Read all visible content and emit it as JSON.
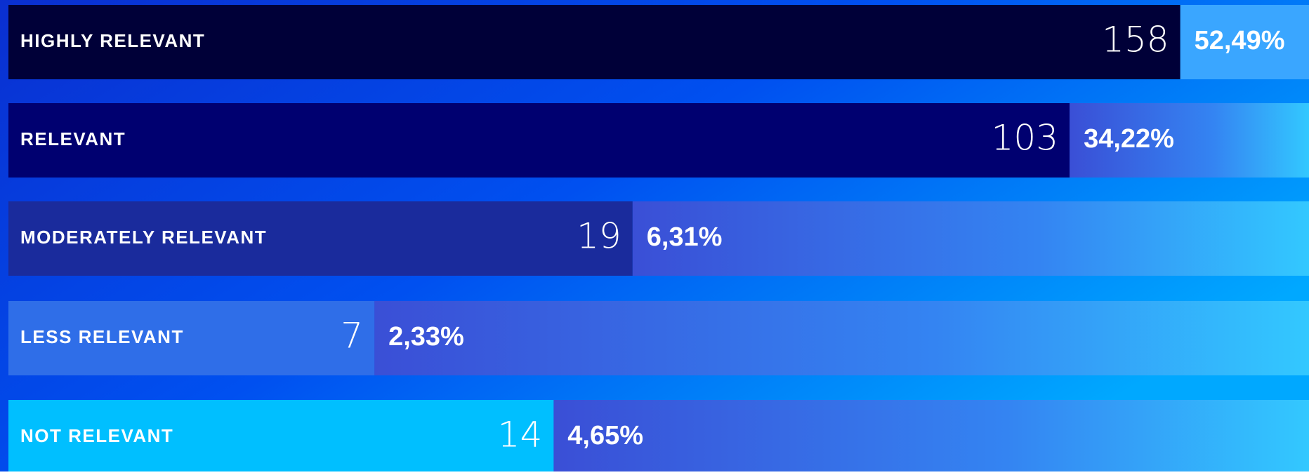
{
  "chart_data": {
    "type": "bar",
    "orientation": "horizontal",
    "log_scale": true,
    "categories": [
      "HIGHLY RELEVANT",
      "RELEVANT",
      "MODERATELY RELEVANT",
      "LESS RELEVANT",
      "NOT RELEVANT"
    ],
    "values": [
      158,
      103,
      19,
      7,
      14
    ],
    "shares": [
      52.49,
      34.22,
      6.31,
      2.33,
      4.65
    ],
    "share_labels": [
      "52,49%",
      "34,22%",
      "6,31%",
      "2,33%",
      "4,65%"
    ],
    "colors": [
      "#000038",
      "#000070",
      "#1a2b9c",
      "#2f6ee8",
      "#00bfff"
    ],
    "xlim": [
      1.7,
      260
    ]
  }
}
